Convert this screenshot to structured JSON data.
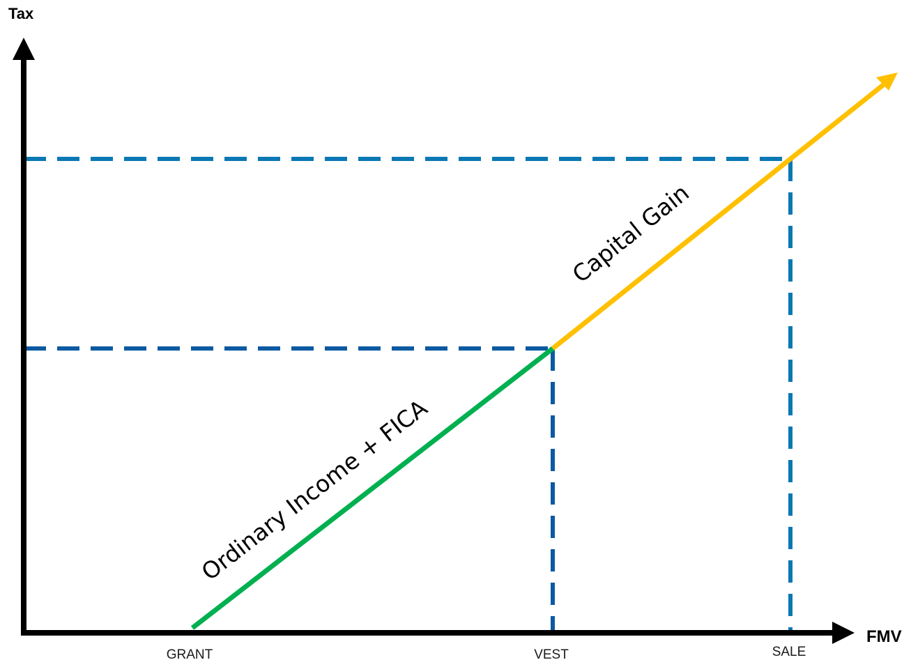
{
  "axes": {
    "y_title": "Tax",
    "x_title": "FMV"
  },
  "milestones": {
    "grant": "GRANT",
    "vest": "VEST",
    "sale": "SALE"
  },
  "segments": {
    "ordinary": {
      "label": "Ordinary Income + FICA",
      "color": "#00b050"
    },
    "capital": {
      "label": "Capital Gain",
      "color": "#ffc000"
    }
  },
  "colors": {
    "axis": "#000000",
    "guide_vest": "#0b5aa2",
    "guide_sale": "#0a78b4"
  }
}
